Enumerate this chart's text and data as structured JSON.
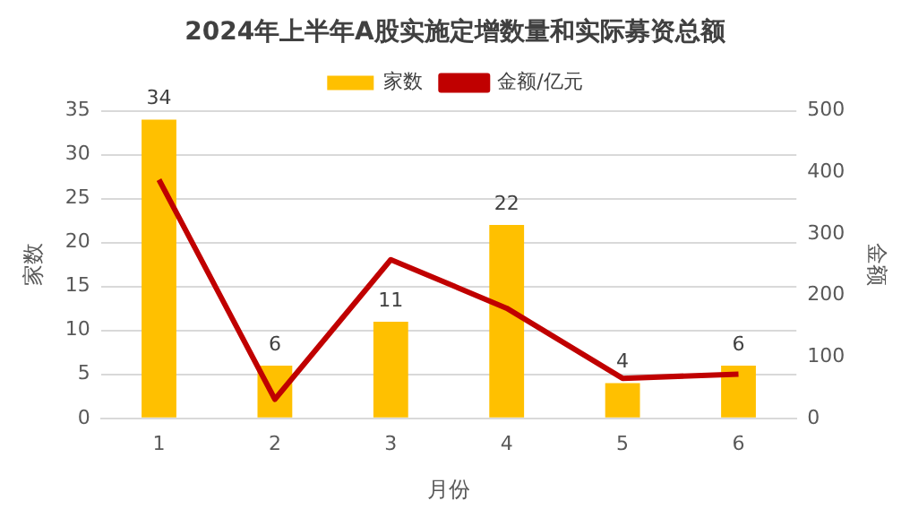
{
  "chart_data": {
    "type": "bar",
    "title": "2024年上半年A股实施定增数量和实际募资总额",
    "xlabel": "月份",
    "ylabel": "家数",
    "y2label": "金额",
    "categories": [
      "1",
      "2",
      "3",
      "4",
      "5",
      "6"
    ],
    "series": [
      {
        "name": "家数",
        "color": "#ffc000",
        "values": [
          34,
          6,
          11,
          22,
          4,
          6
        ],
        "value_labels": [
          "34",
          "6",
          "11",
          "22",
          "4",
          "6"
        ]
      },
      {
        "name": "金额/亿元",
        "type": "line",
        "axis": "y2",
        "color": "#c00000",
        "values": [
          388,
          31,
          258,
          179,
          65,
          72
        ],
        "marker": "none"
      }
    ],
    "ylim": [
      0,
      35
    ],
    "yticks": [
      0,
      5,
      10,
      15,
      20,
      25,
      30,
      35
    ],
    "y2lim": [
      0,
      500
    ],
    "y2ticks": [
      0,
      100,
      200,
      300,
      400,
      500
    ],
    "grid": "y",
    "legend": "top"
  }
}
